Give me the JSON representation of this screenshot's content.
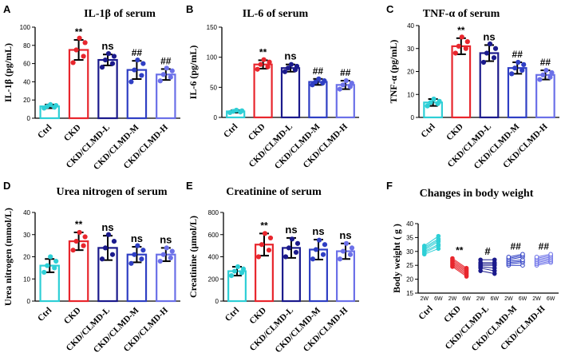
{
  "chart_data": [
    {
      "id": "A",
      "type": "bar",
      "panel_label": "A",
      "title": "IL-1β of serum",
      "ylabel": "IL-1β (pg/mL)",
      "ylim": [
        0,
        100
      ],
      "yticks": [
        "0",
        "20",
        "40",
        "60",
        "80",
        "100"
      ],
      "categories": [
        "Ctrl",
        "CKD",
        "CKD/CLMD-L",
        "CKD/CLMD-M",
        "CKD/CLMD-H"
      ],
      "values": [
        13,
        75,
        64,
        53,
        48
      ],
      "errors": [
        2,
        11,
        6,
        10,
        6
      ],
      "points": [
        [
          11,
          12,
          13,
          14,
          15
        ],
        [
          61,
          68,
          75,
          83,
          88
        ],
        [
          56,
          60,
          64,
          68,
          71
        ],
        [
          40,
          47,
          53,
          60,
          64
        ],
        [
          41,
          45,
          48,
          52,
          55
        ]
      ],
      "significance": [
        "",
        "**",
        "ns",
        "##",
        "##"
      ]
    },
    {
      "id": "B",
      "type": "bar",
      "panel_label": "B",
      "title": "IL-6 of serum",
      "ylabel": "IL-6 (pg/mL)",
      "ylim": [
        0,
        150
      ],
      "yticks": [
        "0",
        "50",
        "100",
        "150"
      ],
      "categories": [
        "Ctrl",
        "CKD",
        "CKD/CLMD-L",
        "CKD/CLMD-M",
        "CKD/CLMD-H"
      ],
      "values": [
        10,
        88,
        82,
        59,
        54
      ],
      "errors": [
        2,
        7,
        6,
        5,
        7
      ],
      "points": [
        [
          8,
          9,
          10,
          11,
          12
        ],
        [
          80,
          84,
          88,
          92,
          96
        ],
        [
          76,
          79,
          82,
          85,
          88
        ],
        [
          54,
          57,
          59,
          61,
          64
        ],
        [
          47,
          51,
          54,
          57,
          61
        ]
      ],
      "significance": [
        "",
        "**",
        "ns",
        "##",
        "##"
      ]
    },
    {
      "id": "C",
      "type": "bar",
      "panel_label": "C",
      "title": "TNF-α of serum",
      "ylabel": "TNF-α (pg/mL)",
      "ylim": [
        0,
        40
      ],
      "yticks": [
        "0",
        "10",
        "20",
        "30",
        "40"
      ],
      "categories": [
        "Ctrl",
        "CKD",
        "CKD/CLMD-L",
        "CKD/CLMD-M",
        "CKD/CLMD-H"
      ],
      "values": [
        6.5,
        31,
        28,
        21.5,
        18.5
      ],
      "errors": [
        1.5,
        3.5,
        3.5,
        2.5,
        2
      ],
      "points": [
        [
          5,
          6,
          6.5,
          7,
          8
        ],
        [
          28,
          30,
          31,
          33,
          35
        ],
        [
          24,
          26,
          28,
          30,
          32
        ],
        [
          19,
          20.5,
          21.5,
          23,
          24
        ],
        [
          16.5,
          17.5,
          18.5,
          19.5,
          20.5
        ]
      ],
      "significance": [
        "",
        "**",
        "ns",
        "##",
        "##"
      ]
    },
    {
      "id": "D",
      "type": "bar",
      "panel_label": "D",
      "title": "Urea nitrogen of serum",
      "ylabel": "Urea nitrogen (mmol/L)",
      "ylim": [
        0,
        40
      ],
      "yticks": [
        "0",
        "10",
        "20",
        "30",
        "40"
      ],
      "categories": [
        "Ctrl",
        "CKD",
        "CKD/CLMD-L",
        "CKD/CLMD-M",
        "CKD/CLMD-H"
      ],
      "values": [
        16,
        27,
        24,
        21,
        21
      ],
      "errors": [
        3,
        4,
        5.5,
        3.5,
        3
      ],
      "points": [
        [
          13,
          15,
          16,
          18,
          20
        ],
        [
          23,
          25,
          27,
          29,
          31
        ],
        [
          19,
          21,
          24,
          27,
          30
        ],
        [
          17,
          19,
          21,
          23,
          25
        ],
        [
          18,
          19.5,
          21,
          22.5,
          24
        ]
      ],
      "significance": [
        "",
        "**",
        "ns",
        "ns",
        "ns"
      ]
    },
    {
      "id": "E",
      "type": "bar",
      "panel_label": "E",
      "title": "Creatinine of serum",
      "ylabel": "Creatinine (μmol/L)",
      "ylim": [
        0,
        800
      ],
      "yticks": [
        "0",
        "200",
        "400",
        "600",
        "800"
      ],
      "categories": [
        "Ctrl",
        "CKD",
        "CKD/CLMD-L",
        "CKD/CLMD-M",
        "CKD/CLMD-H"
      ],
      "values": [
        270,
        510,
        480,
        465,
        450
      ],
      "errors": [
        40,
        100,
        90,
        90,
        70
      ],
      "points": [
        [
          230,
          255,
          270,
          290,
          310
        ],
        [
          400,
          460,
          510,
          570,
          610
        ],
        [
          400,
          440,
          480,
          520,
          560
        ],
        [
          380,
          420,
          465,
          510,
          550
        ],
        [
          380,
          420,
          450,
          480,
          520
        ]
      ],
      "significance": [
        "",
        "**",
        "ns",
        "ns",
        "ns"
      ]
    },
    {
      "id": "F",
      "type": "line",
      "panel_label": "F",
      "title": "Changes in body weight",
      "ylabel": "Body weight ( g )",
      "ylim": [
        15,
        40
      ],
      "yticks": [
        "15",
        "20",
        "25",
        "30",
        "35",
        "40"
      ],
      "time_labels": [
        "2W",
        "6W"
      ],
      "categories": [
        "Ctrl",
        "CKD",
        "CKD/CLMD-L",
        "CKD/CLMD-M",
        "CKD/CLMD-H"
      ],
      "series": [
        {
          "name": "Ctrl",
          "week2": [
            29,
            29.5,
            30,
            30.5,
            31,
            31.5,
            32
          ],
          "week6": [
            31,
            32,
            32.5,
            33.5,
            34,
            34.5,
            35.5
          ]
        },
        {
          "name": "CKD",
          "week2": [
            24.5,
            25,
            25.5,
            26,
            26.5,
            27,
            27.5
          ],
          "week6": [
            21,
            21.5,
            22,
            22.5,
            23,
            23.5,
            24
          ]
        },
        {
          "name": "CKD/CLMD-L",
          "week2": [
            23,
            24,
            24.5,
            25,
            25.5,
            26,
            27
          ],
          "week6": [
            22,
            23,
            24,
            25,
            25.5,
            26,
            27
          ]
        },
        {
          "name": "CKD/CLMD-M",
          "week2": [
            25,
            25.5,
            26,
            26.5,
            27,
            27.5,
            28
          ],
          "week6": [
            25,
            26,
            26.5,
            27,
            28,
            28.5,
            29
          ]
        },
        {
          "name": "CKD/CLMD-H",
          "week2": [
            25,
            25.5,
            26,
            26.5,
            27,
            27.5,
            28
          ],
          "week6": [
            26,
            26.5,
            27,
            27.5,
            28,
            28.5,
            29
          ]
        }
      ],
      "significance": [
        "",
        "**",
        "#",
        "##",
        "##"
      ]
    }
  ],
  "colors": [
    "#2ecfd6",
    "#e8262d",
    "#1b1a8c",
    "#2f3fc4",
    "#6b70e8"
  ]
}
